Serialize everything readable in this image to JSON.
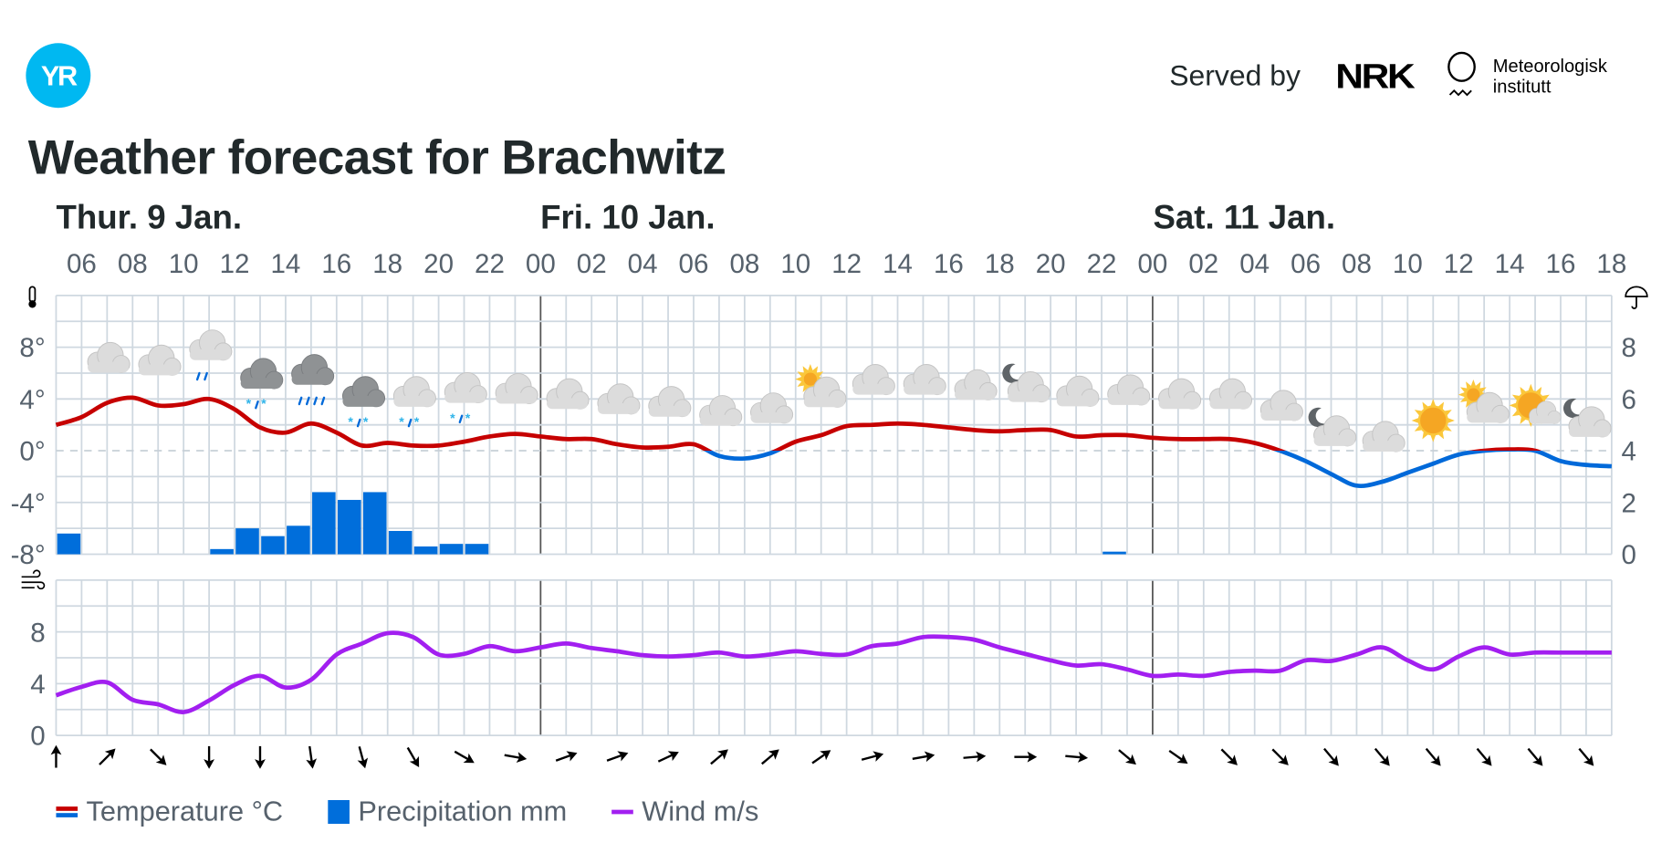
{
  "header": {
    "logo": "YR",
    "served_by": "Served by",
    "nrk_logo": "NRK",
    "met_logo": [
      "Meteorologisk",
      "institutt"
    ],
    "title": "Weather forecast for Brachwitz"
  },
  "days": [
    "Thur. 9 Jan.",
    "Fri. 10 Jan.",
    "Sat. 11 Jan."
  ],
  "legend": {
    "temperature": "Temperature °C",
    "precipitation": "Precipitation mm",
    "wind": "Wind m/s"
  },
  "colors": {
    "temp_warm": "#c60000",
    "temp_cold": "#0069d9",
    "precip": "#006edb",
    "wind": "#a21ff0",
    "grid": "#cfd8e0",
    "text": "#56616c"
  },
  "chart_data": {
    "type": "line",
    "x_start": "Thu 05:00",
    "x_step_hours": 1,
    "hour_labels": [
      "06",
      "08",
      "10",
      "12",
      "14",
      "16",
      "18",
      "20",
      "22",
      "00",
      "02",
      "04",
      "06",
      "08",
      "10",
      "12",
      "14",
      "16",
      "18",
      "20",
      "22",
      "00",
      "02",
      "04",
      "06",
      "08",
      "10",
      "12",
      "14",
      "16",
      "18"
    ],
    "temperature_axis": {
      "ticks": [
        "8°",
        "4°",
        "0°",
        "-4°",
        "-8°"
      ],
      "values": [
        8,
        4,
        0,
        -4,
        -8
      ],
      "ylim": [
        -8,
        12
      ]
    },
    "precip_axis": {
      "ticks": [
        "8",
        "6",
        "4",
        "2",
        "0"
      ],
      "values": [
        8,
        6,
        4,
        2,
        0
      ],
      "ylim": [
        0,
        10
      ]
    },
    "wind_axis": {
      "ticks": [
        "8",
        "4",
        "0"
      ],
      "values": [
        8,
        4,
        0
      ],
      "ylim": [
        0,
        12
      ]
    },
    "temperature": [
      2.0,
      2.6,
      3.7,
      4.1,
      3.5,
      3.6,
      4.0,
      3.2,
      1.8,
      1.4,
      2.1,
      1.4,
      0.4,
      0.6,
      0.4,
      0.4,
      0.7,
      1.1,
      1.3,
      1.1,
      0.9,
      0.9,
      0.5,
      0.25,
      0.3,
      0.5,
      -0.4,
      -0.6,
      -0.2,
      0.7,
      1.2,
      1.9,
      2.0,
      2.1,
      2.0,
      1.8,
      1.6,
      1.5,
      1.6,
      1.6,
      1.1,
      1.2,
      1.2,
      1.0,
      0.9,
      0.9,
      0.9,
      0.6,
      0.0,
      -0.8,
      -1.8,
      -2.7,
      -2.4,
      -1.7,
      -1.0,
      -0.3,
      0.0,
      0.1,
      0.0,
      -0.8,
      -1.1,
      -1.2
    ],
    "precipitation": [
      0.8,
      0,
      0,
      0,
      0,
      0,
      0.2,
      1.0,
      0.7,
      1.1,
      2.4,
      2.1,
      2.4,
      0.9,
      0.3,
      0.4,
      0.4,
      0,
      0,
      0,
      0,
      0,
      0,
      0,
      0,
      0,
      0,
      0,
      0,
      0,
      0,
      0,
      0,
      0,
      0,
      0,
      0,
      0,
      0,
      0,
      0,
      0.1,
      0,
      0,
      0,
      0,
      0,
      0,
      0,
      0,
      0,
      0,
      0,
      0,
      0,
      0,
      0,
      0,
      0,
      0,
      0
    ],
    "wind": [
      3.1,
      3.75,
      4.1,
      2.75,
      2.4,
      1.8,
      2.7,
      3.9,
      4.6,
      3.7,
      4.3,
      6.25,
      7.1,
      7.9,
      7.6,
      6.25,
      6.3,
      6.9,
      6.5,
      6.8,
      7.1,
      6.75,
      6.5,
      6.2,
      6.1,
      6.2,
      6.4,
      6.1,
      6.25,
      6.5,
      6.3,
      6.25,
      6.9,
      7.1,
      7.6,
      7.6,
      7.4,
      6.8,
      6.3,
      5.8,
      5.4,
      5.5,
      5.1,
      4.6,
      4.7,
      4.6,
      4.9,
      5.0,
      5.0,
      5.8,
      5.75,
      6.25,
      6.8,
      5.8,
      5.1,
      6.1,
      6.8,
      6.25,
      6.4,
      6.4,
      6.4,
      6.4
    ],
    "wind_direction_arrows_deg": [
      0,
      45,
      135,
      180,
      180,
      172,
      165,
      150,
      120,
      100,
      70,
      70,
      65,
      50,
      50,
      55,
      75,
      80,
      85,
      90,
      95,
      130,
      125,
      135,
      135,
      140,
      140,
      140,
      140,
      140,
      140
    ],
    "weather_symbols": [
      "cloudy",
      "cloudy",
      "lightrain",
      "sleet",
      "rain",
      "sleet",
      "sleet",
      "sleet",
      "cloudy",
      "cloudy",
      "cloudy",
      "cloudy",
      "cloudy",
      "cloudy",
      "partlycloudy_day",
      "cloudy",
      "cloudy",
      "cloudy",
      "partlycloudy_night",
      "cloudy",
      "cloudy",
      "cloudy",
      "cloudy",
      "cloudy",
      "partlycloudy_night",
      "cloudy",
      "clearsky_day",
      "partlycloudy_day",
      "fair_day",
      "partlycloudy_night"
    ]
  }
}
